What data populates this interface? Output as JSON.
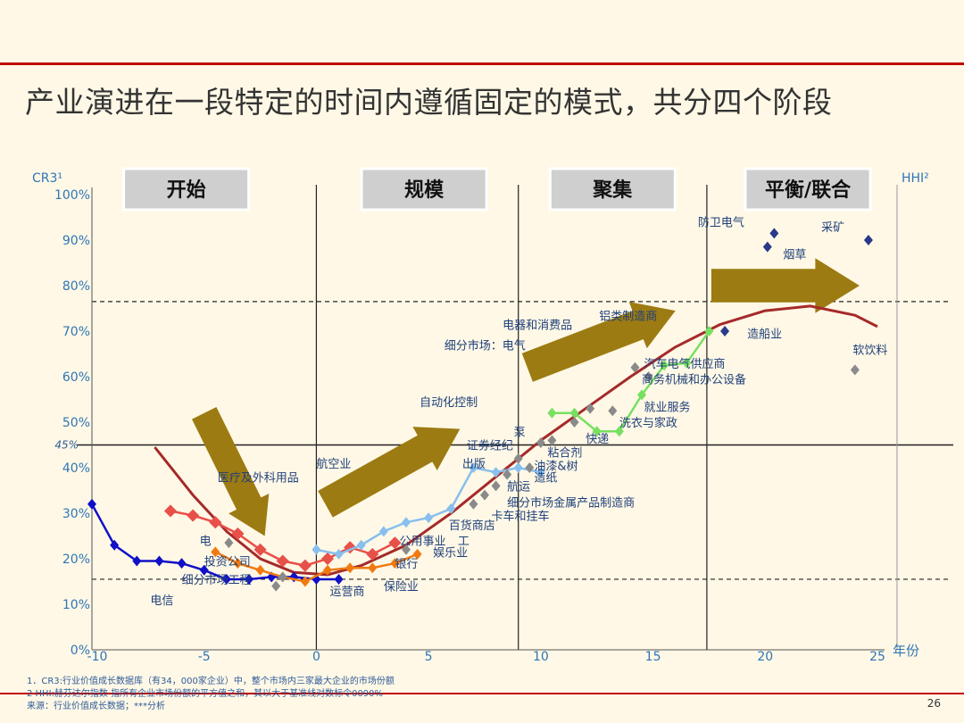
{
  "slide": {
    "title": "产业演进在一段特定的时间内遵循固定的模式，共分四个阶段",
    "page_number": "26",
    "footnotes": [
      "1．CR3:行业价值成长数据库（有34，000家企业）中，整个市场内三家最大企业的市场份额",
      "2 HHI:赫芬达尔指数 指所有企业市场份额的平方值之和，其以大于基准线对数标令0090%",
      "来源：行业价值成长数据；***分析"
    ]
  },
  "colors": {
    "accent_red": "#c00000",
    "axis_text": "#2e75b6",
    "label_text": "#2e5b9a",
    "arrow_gold": "#9c7b12",
    "curve_red": "#a52a2a",
    "telecom_blue": "#1010c8",
    "airline_red": "#e8504a",
    "utility_orange": "#f07a10",
    "light_blue": "#88bfee",
    "green": "#77e060",
    "gray": "#8a8a8a",
    "navy": "#2a3a8a"
  },
  "chart_data": {
    "type": "scatter",
    "xlabel": "年份",
    "ylabel_left": "CR3¹",
    "ylabel_right": "HHI²",
    "xlim": [
      -10,
      25
    ],
    "ylim": [
      0,
      100
    ],
    "x_ticks": [
      {
        "v": -10,
        "t": "-10"
      },
      {
        "v": -5,
        "t": "-5"
      },
      {
        "v": 0,
        "t": "0"
      },
      {
        "v": 5,
        "t": "5"
      },
      {
        "v": 10,
        "t": "10"
      },
      {
        "v": 15,
        "t": "15"
      },
      {
        "v": 20,
        "t": "20"
      },
      {
        "v": 25,
        "t": "25"
      }
    ],
    "y_ticks": [
      {
        "v": 0,
        "t": "0%"
      },
      {
        "v": 10,
        "t": "10%"
      },
      {
        "v": 20,
        "t": "20%"
      },
      {
        "v": 30,
        "t": "30%"
      },
      {
        "v": 40,
        "t": "40%"
      },
      {
        "v": 50,
        "t": "50%"
      },
      {
        "v": 60,
        "t": "60%"
      },
      {
        "v": 70,
        "t": "70%"
      },
      {
        "v": 80,
        "t": "80%"
      },
      {
        "v": 90,
        "t": "90%"
      },
      {
        "v": 100,
        "t": "100%"
      }
    ],
    "reference_line": {
      "y": 45,
      "label": "45%"
    },
    "dashed_lines": [
      15.5,
      76.5
    ],
    "stage_boundaries": [
      0,
      9,
      17.4
    ],
    "stages": [
      {
        "label": "开始",
        "x_center": -5.8
      },
      {
        "label": "规模",
        "x_center": 4.8
      },
      {
        "label": "聚集",
        "x_center": 13.2
      },
      {
        "label": "平衡/联合",
        "x_center": 21.9
      }
    ],
    "curve": [
      [
        -7.2,
        44.5
      ],
      [
        -5.5,
        34
      ],
      [
        -4,
        26
      ],
      [
        -2.5,
        20
      ],
      [
        -1,
        17
      ],
      [
        0.5,
        16.5
      ],
      [
        2,
        18.5
      ],
      [
        4,
        23
      ],
      [
        6,
        30
      ],
      [
        8,
        38
      ],
      [
        10,
        46
      ],
      [
        12,
        53
      ],
      [
        14,
        60
      ],
      [
        16,
        66.5
      ],
      [
        18,
        71.5
      ],
      [
        20,
        74.5
      ],
      [
        22,
        75.5
      ],
      [
        24,
        73.5
      ],
      [
        25,
        71
      ]
    ],
    "series": [
      {
        "name": "电信",
        "color_key": "telecom_blue",
        "marker": "diamond",
        "points": [
          [
            -10,
            32
          ],
          [
            -9,
            23
          ],
          [
            -8,
            19.5
          ],
          [
            -7,
            19.5
          ],
          [
            -6,
            19
          ],
          [
            -5,
            17.5
          ],
          [
            -4,
            15.5
          ],
          [
            -3,
            15.5
          ],
          [
            -2,
            16
          ],
          [
            -1,
            16
          ],
          [
            0,
            15.5
          ],
          [
            1,
            15.5
          ]
        ]
      },
      {
        "name": "航空业",
        "color_key": "airline_red",
        "marker": "square",
        "points": [
          [
            -6.5,
            30.5
          ],
          [
            -5.5,
            29.5
          ],
          [
            -4.5,
            28
          ],
          [
            -3.5,
            25.5
          ],
          [
            -2.5,
            22
          ],
          [
            -1.5,
            19.5
          ],
          [
            -0.5,
            18.5
          ],
          [
            0.5,
            20
          ],
          [
            1.5,
            22.5
          ],
          [
            2.5,
            21
          ],
          [
            3.5,
            23.5
          ]
        ]
      },
      {
        "name": "公用事业",
        "color_key": "utility_orange",
        "marker": "diamond",
        "points": [
          [
            -4.5,
            21.5
          ],
          [
            -3.5,
            19
          ],
          [
            -2.5,
            17.5
          ],
          [
            -1.5,
            16
          ],
          [
            -0.5,
            15
          ],
          [
            0.5,
            17.5
          ],
          [
            1.5,
            18
          ],
          [
            2.5,
            18
          ],
          [
            3.5,
            19
          ],
          [
            4.5,
            21
          ]
        ]
      },
      {
        "name": "出版",
        "color_key": "light_blue",
        "marker": "diamond",
        "points": [
          [
            0,
            22
          ],
          [
            1,
            21
          ],
          [
            2,
            23
          ],
          [
            3,
            26
          ],
          [
            4,
            28
          ],
          [
            5,
            29
          ],
          [
            6,
            31
          ],
          [
            7,
            40
          ],
          [
            8,
            39
          ],
          [
            9,
            40
          ],
          [
            10,
            39
          ]
        ]
      },
      {
        "name": "汽车电气供应商",
        "color_key": "green",
        "marker": "diamond",
        "points": [
          [
            10.5,
            52
          ],
          [
            11.5,
            52
          ],
          [
            12.5,
            48
          ],
          [
            13.5,
            48
          ],
          [
            14.5,
            56
          ],
          [
            15.5,
            62.5
          ],
          [
            16.5,
            63
          ],
          [
            17.5,
            70
          ]
        ]
      }
    ],
    "scatter_points": [
      {
        "x": -3.9,
        "y": 23.5,
        "color_key": "gray"
      },
      {
        "x": -1.8,
        "y": 14,
        "color_key": "gray"
      },
      {
        "x": -1.5,
        "y": 16,
        "color_key": "gray"
      },
      {
        "x": 4,
        "y": 22,
        "color_key": "gray"
      },
      {
        "x": 7,
        "y": 32,
        "color_key": "gray"
      },
      {
        "x": 7.5,
        "y": 34,
        "color_key": "gray"
      },
      {
        "x": 8,
        "y": 36,
        "color_key": "gray"
      },
      {
        "x": 8.5,
        "y": 38.5,
        "color_key": "gray"
      },
      {
        "x": 9,
        "y": 42,
        "color_key": "gray"
      },
      {
        "x": 9.5,
        "y": 40,
        "color_key": "gray"
      },
      {
        "x": 10,
        "y": 45.5,
        "color_key": "gray"
      },
      {
        "x": 10.5,
        "y": 46,
        "color_key": "gray"
      },
      {
        "x": 11.5,
        "y": 50,
        "color_key": "gray"
      },
      {
        "x": 12.2,
        "y": 53,
        "color_key": "gray"
      },
      {
        "x": 13.2,
        "y": 52.5,
        "color_key": "gray"
      },
      {
        "x": 14.2,
        "y": 62,
        "color_key": "gray"
      },
      {
        "x": 14.8,
        "y": 60,
        "color_key": "gray"
      },
      {
        "x": 24,
        "y": 61.5,
        "color_key": "gray"
      },
      {
        "x": 18.2,
        "y": 70,
        "color_key": "navy"
      },
      {
        "x": 20.4,
        "y": 91.5,
        "color_key": "navy"
      },
      {
        "x": 20.1,
        "y": 88.5,
        "color_key": "navy"
      },
      {
        "x": 24.6,
        "y": 90,
        "color_key": "navy"
      }
    ],
    "arrows": [
      {
        "from": [
          -5,
          52
        ],
        "to": [
          -2.3,
          25
        ],
        "width": 4.5
      },
      {
        "from": [
          0.4,
          32
        ],
        "to": [
          6.4,
          48.5
        ],
        "width": 5
      },
      {
        "from": [
          9.4,
          62
        ],
        "to": [
          16,
          74.5
        ],
        "width": 5
      },
      {
        "from": [
          17.6,
          80
        ],
        "to": [
          24.2,
          80
        ],
        "width": 5.5
      }
    ],
    "annotations": [
      {
        "text": "防卫电气",
        "x": 17,
        "y": 93
      },
      {
        "text": "采矿",
        "x": 22.5,
        "y": 92
      },
      {
        "text": "烟草",
        "x": 20.8,
        "y": 86
      },
      {
        "text": "铝类制造商",
        "x": 12.6,
        "y": 72.5
      },
      {
        "text": "电器和消费品",
        "x": 8.3,
        "y": 70.5
      },
      {
        "text": "细分市场：电气",
        "x": 5.7,
        "y": 66
      },
      {
        "text": "造船业",
        "x": 19.2,
        "y": 68.5
      },
      {
        "text": "软饮料",
        "x": 23.9,
        "y": 65
      },
      {
        "text": "汽车电气供应商",
        "x": 14.6,
        "y": 62
      },
      {
        "text": "商务机械和办公设备",
        "x": 14.5,
        "y": 58.5
      },
      {
        "text": "自动化控制",
        "x": 4.6,
        "y": 53.5
      },
      {
        "text": "就业服务",
        "x": 14.6,
        "y": 52.5
      },
      {
        "text": "洗衣与家政",
        "x": 13.5,
        "y": 49
      },
      {
        "text": "泵",
        "x": 8.8,
        "y": 47
      },
      {
        "text": "快递",
        "x": 12,
        "y": 45.5
      },
      {
        "text": "证券经纪",
        "x": 6.7,
        "y": 44
      },
      {
        "text": "粘合剂",
        "x": 10.3,
        "y": 42.5
      },
      {
        "text": "出版",
        "x": 6.5,
        "y": 40
      },
      {
        "text": "油漆&树",
        "x": 9.7,
        "y": 39.5
      },
      {
        "text": "航空业",
        "x": 0,
        "y": 40
      },
      {
        "text": "造纸",
        "x": 9.7,
        "y": 37
      },
      {
        "text": "医疗及外科用品",
        "x": -4.4,
        "y": 37
      },
      {
        "text": "航运",
        "x": 8.5,
        "y": 35
      },
      {
        "text": "细分市场金属产品制造商",
        "x": 8.5,
        "y": 31.5
      },
      {
        "text": "卡车和挂车",
        "x": 7.8,
        "y": 28.5
      },
      {
        "text": "百货商店",
        "x": 5.9,
        "y": 26.5
      },
      {
        "text": "电",
        "x": -5.2,
        "y": 23
      },
      {
        "text": "公用事业",
        "x": 3.7,
        "y": 23
      },
      {
        "text": "工",
        "x": 6.3,
        "y": 23
      },
      {
        "text": "娱乐业",
        "x": 5.2,
        "y": 20.5
      },
      {
        "text": "投资公司",
        "x": -5,
        "y": 18.5
      },
      {
        "text": "银行",
        "x": 3.5,
        "y": 18
      },
      {
        "text": "细分市场工程",
        "x": -6,
        "y": 14.5
      },
      {
        "text": "保险业",
        "x": 3,
        "y": 13
      },
      {
        "text": "运营商",
        "x": 0.6,
        "y": 12
      },
      {
        "text": "电信",
        "x": -7.4,
        "y": 10
      }
    ]
  }
}
